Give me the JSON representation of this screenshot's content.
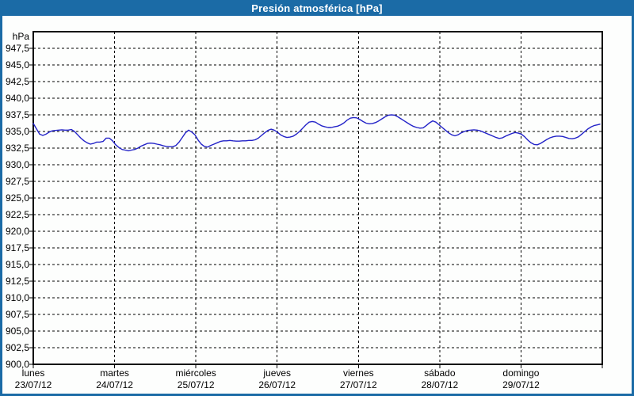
{
  "window": {
    "title": "Presión atmosférica [hPa]"
  },
  "colors": {
    "titlebar_bg": "#1b6ba6",
    "titlebar_text": "#ffffff",
    "window_border": "#1b6ba6",
    "plot_background": "#fdfefd",
    "plot_border": "#000000",
    "grid": "#000000",
    "series_line": "#2323c8",
    "label_text": "#000000"
  },
  "chart_data": {
    "type": "line",
    "title": "Presión atmosférica [hPa]",
    "ylabel": "hPa",
    "unit_label": "hPa",
    "ylim": [
      900,
      950
    ],
    "y_tick_step": 2.5,
    "y_tick_labels": [
      "947,5",
      "945,0",
      "942,5",
      "940,0",
      "937,5",
      "935,0",
      "932,5",
      "930,0",
      "927,5",
      "925,0",
      "922,5",
      "920,0",
      "917,5",
      "915,0",
      "912,5",
      "910,0",
      "907,5",
      "905,0",
      "902,5",
      "900,0"
    ],
    "xlim_days": [
      0,
      7
    ],
    "grid": "dashed",
    "legend_position": "none",
    "days": [
      {
        "name": "lunes",
        "date": "23/07/12"
      },
      {
        "name": "martes",
        "date": "24/07/12"
      },
      {
        "name": "miércoles",
        "date": "25/07/12"
      },
      {
        "name": "jueves",
        "date": "26/07/12"
      },
      {
        "name": "viernes",
        "date": "27/07/12"
      },
      {
        "name": "sábado",
        "date": "28/07/12"
      },
      {
        "name": "domingo",
        "date": "29/07/12"
      }
    ],
    "series": [
      {
        "name": "Presión atmosférica",
        "points": [
          [
            0,
            936.2
          ],
          [
            0.039,
            935.4
          ],
          [
            0.078,
            934.6
          ],
          [
            0.117,
            934.4
          ],
          [
            0.156,
            934.6
          ],
          [
            0.195,
            934.9
          ],
          [
            0.234,
            935.1
          ],
          [
            0.273,
            935.15
          ],
          [
            0.312,
            935.2
          ],
          [
            0.351,
            935.25
          ],
          [
            0.39,
            935.2
          ],
          [
            0.429,
            935.2
          ],
          [
            0.468,
            935.3
          ],
          [
            0.507,
            935.0
          ],
          [
            0.546,
            934.5
          ],
          [
            0.585,
            934.0
          ],
          [
            0.624,
            933.6
          ],
          [
            0.663,
            933.3
          ],
          [
            0.702,
            933.1
          ],
          [
            0.741,
            933.2
          ],
          [
            0.78,
            933.4
          ],
          [
            0.819,
            933.4
          ],
          [
            0.858,
            933.5
          ],
          [
            0.897,
            934.0
          ],
          [
            0.936,
            934.0
          ],
          [
            0.975,
            933.6
          ],
          [
            1.014,
            933.0
          ],
          [
            1.053,
            932.6
          ],
          [
            1.092,
            932.3
          ],
          [
            1.131,
            932.2
          ],
          [
            1.17,
            932.1
          ],
          [
            1.209,
            932.2
          ],
          [
            1.248,
            932.3
          ],
          [
            1.287,
            932.5
          ],
          [
            1.326,
            932.8
          ],
          [
            1.365,
            933.0
          ],
          [
            1.404,
            933.2
          ],
          [
            1.443,
            933.25
          ],
          [
            1.482,
            933.2
          ],
          [
            1.521,
            933.1
          ],
          [
            1.56,
            933.0
          ],
          [
            1.599,
            932.85
          ],
          [
            1.638,
            932.75
          ],
          [
            1.677,
            932.7
          ],
          [
            1.716,
            932.7
          ],
          [
            1.755,
            932.9
          ],
          [
            1.794,
            933.4
          ],
          [
            1.833,
            934.1
          ],
          [
            1.872,
            934.8
          ],
          [
            1.911,
            935.2
          ],
          [
            1.95,
            934.9
          ],
          [
            1.989,
            934.5
          ],
          [
            2.028,
            933.7
          ],
          [
            2.067,
            933.1
          ],
          [
            2.106,
            932.75
          ],
          [
            2.145,
            932.65
          ],
          [
            2.184,
            932.9
          ],
          [
            2.223,
            933.1
          ],
          [
            2.262,
            933.3
          ],
          [
            2.301,
            933.5
          ],
          [
            2.34,
            933.6
          ],
          [
            2.379,
            933.6
          ],
          [
            2.418,
            933.65
          ],
          [
            2.457,
            933.6
          ],
          [
            2.496,
            933.55
          ],
          [
            2.535,
            933.55
          ],
          [
            2.574,
            933.6
          ],
          [
            2.613,
            933.6
          ],
          [
            2.652,
            933.65
          ],
          [
            2.691,
            933.65
          ],
          [
            2.73,
            933.75
          ],
          [
            2.769,
            934.0
          ],
          [
            2.808,
            934.4
          ],
          [
            2.847,
            934.8
          ],
          [
            2.886,
            935.15
          ],
          [
            2.925,
            935.35
          ],
          [
            2.964,
            935.2
          ],
          [
            3.003,
            934.9
          ],
          [
            3.042,
            934.5
          ],
          [
            3.081,
            934.25
          ],
          [
            3.12,
            934.1
          ],
          [
            3.159,
            934.15
          ],
          [
            3.198,
            934.3
          ],
          [
            3.237,
            934.6
          ],
          [
            3.276,
            935.0
          ],
          [
            3.315,
            935.5
          ],
          [
            3.354,
            936.0
          ],
          [
            3.393,
            936.4
          ],
          [
            3.432,
            936.5
          ],
          [
            3.471,
            936.4
          ],
          [
            3.51,
            936.1
          ],
          [
            3.549,
            935.85
          ],
          [
            3.588,
            935.7
          ],
          [
            3.627,
            935.6
          ],
          [
            3.666,
            935.6
          ],
          [
            3.705,
            935.7
          ],
          [
            3.744,
            935.8
          ],
          [
            3.783,
            936.0
          ],
          [
            3.822,
            936.3
          ],
          [
            3.861,
            936.7
          ],
          [
            3.9,
            937.0
          ],
          [
            3.939,
            937.1
          ],
          [
            3.978,
            937.05
          ],
          [
            4.017,
            936.8
          ],
          [
            4.056,
            936.5
          ],
          [
            4.095,
            936.25
          ],
          [
            4.134,
            936.15
          ],
          [
            4.173,
            936.2
          ],
          [
            4.212,
            936.35
          ],
          [
            4.251,
            936.6
          ],
          [
            4.29,
            936.9
          ],
          [
            4.329,
            937.2
          ],
          [
            4.368,
            937.45
          ],
          [
            4.407,
            937.5
          ],
          [
            4.446,
            937.45
          ],
          [
            4.485,
            937.2
          ],
          [
            4.524,
            936.9
          ],
          [
            4.563,
            936.6
          ],
          [
            4.602,
            936.3
          ],
          [
            4.641,
            936.0
          ],
          [
            4.68,
            935.75
          ],
          [
            4.719,
            935.6
          ],
          [
            4.758,
            935.5
          ],
          [
            4.797,
            935.55
          ],
          [
            4.836,
            935.9
          ],
          [
            4.875,
            936.3
          ],
          [
            4.914,
            936.6
          ],
          [
            4.953,
            936.4
          ],
          [
            4.992,
            936.0
          ],
          [
            5.031,
            935.6
          ],
          [
            5.07,
            935.2
          ],
          [
            5.109,
            934.8
          ],
          [
            5.148,
            934.5
          ],
          [
            5.187,
            934.35
          ],
          [
            5.226,
            934.5
          ],
          [
            5.265,
            934.8
          ],
          [
            5.304,
            935.0
          ],
          [
            5.343,
            935.15
          ],
          [
            5.382,
            935.2
          ],
          [
            5.421,
            935.25
          ],
          [
            5.46,
            935.2
          ],
          [
            5.499,
            935.1
          ],
          [
            5.538,
            934.9
          ],
          [
            5.577,
            934.7
          ],
          [
            5.616,
            934.5
          ],
          [
            5.655,
            934.3
          ],
          [
            5.694,
            934.1
          ],
          [
            5.733,
            933.95
          ],
          [
            5.772,
            934.05
          ],
          [
            5.811,
            934.3
          ],
          [
            5.85,
            934.5
          ],
          [
            5.889,
            934.7
          ],
          [
            5.928,
            934.85
          ],
          [
            5.967,
            934.75
          ],
          [
            6.006,
            934.6
          ],
          [
            6.045,
            934.2
          ],
          [
            6.084,
            933.7
          ],
          [
            6.123,
            933.3
          ],
          [
            6.162,
            933.05
          ],
          [
            6.201,
            933.0
          ],
          [
            6.24,
            933.2
          ],
          [
            6.279,
            933.5
          ],
          [
            6.318,
            933.8
          ],
          [
            6.357,
            934.05
          ],
          [
            6.396,
            934.2
          ],
          [
            6.435,
            934.3
          ],
          [
            6.474,
            934.3
          ],
          [
            6.513,
            934.25
          ],
          [
            6.552,
            934.1
          ],
          [
            6.591,
            933.95
          ],
          [
            6.63,
            933.9
          ],
          [
            6.669,
            934.0
          ],
          [
            6.708,
            934.2
          ],
          [
            6.747,
            934.6
          ],
          [
            6.786,
            935.0
          ],
          [
            6.825,
            935.4
          ],
          [
            6.864,
            935.7
          ],
          [
            6.903,
            935.9
          ],
          [
            6.942,
            936.0
          ],
          [
            6.971,
            936.1
          ]
        ]
      }
    ]
  }
}
